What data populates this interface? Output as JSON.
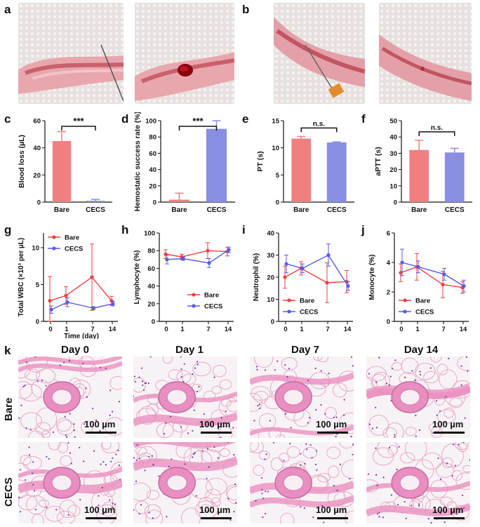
{
  "panel_letters": {
    "a": "a",
    "b": "b",
    "c": "c",
    "d": "d",
    "e": "e",
    "f": "f",
    "g": "g",
    "h": "h",
    "i": "i",
    "j": "j",
    "k": "k"
  },
  "colors": {
    "bare": "#f08080",
    "cecs": "#8a8ee0",
    "bare_line": "#ef4040",
    "cecs_line": "#5a5ae8"
  },
  "histology": {
    "days": [
      "Day 0",
      "Day 1",
      "Day 7",
      "Day 14"
    ],
    "rows": [
      "Bare",
      "CECS"
    ],
    "scale_label": "100 µm"
  },
  "chart_data": [
    {
      "id": "c",
      "type": "bar",
      "categories": [
        "Bare",
        "CECS"
      ],
      "values": [
        45,
        1
      ],
      "errors": [
        7,
        1
      ],
      "ylabel": "Blood loss (µL)",
      "ylim": [
        0,
        60
      ],
      "yticks": [
        0,
        20,
        40,
        60
      ],
      "significance": "***"
    },
    {
      "id": "d",
      "type": "bar",
      "categories": [
        "Bare",
        "CECS"
      ],
      "values": [
        3,
        90
      ],
      "errors": [
        8,
        10
      ],
      "ylabel": "Hemostatic success rate (%)",
      "ylim": [
        0,
        100
      ],
      "yticks": [
        0,
        20,
        40,
        60,
        80,
        100
      ],
      "significance": "***"
    },
    {
      "id": "e",
      "type": "bar",
      "categories": [
        "Bare",
        "CECS"
      ],
      "values": [
        11.7,
        11.0
      ],
      "errors": [
        0.4,
        0.1
      ],
      "ylabel": "PT (s)",
      "ylim": [
        0,
        15
      ],
      "yticks": [
        0,
        5,
        10,
        15
      ],
      "significance": "n.s."
    },
    {
      "id": "f",
      "type": "bar",
      "categories": [
        "Bare",
        "CECS"
      ],
      "values": [
        32,
        30.5
      ],
      "errors": [
        6,
        2.5
      ],
      "ylabel": "aPTT (s)",
      "ylim": [
        0,
        50
      ],
      "yticks": [
        0,
        10,
        20,
        30,
        40,
        50
      ],
      "significance": "n.s."
    },
    {
      "id": "g",
      "type": "line",
      "x": [
        0,
        1,
        7,
        14
      ],
      "xlabel": "Time (day)",
      "ylabel": "Total WBC (×10³ per µL)",
      "ylim": [
        0,
        12
      ],
      "yticks": [
        0,
        5,
        10
      ],
      "legend": "top-left",
      "series": [
        {
          "name": "Bare",
          "values": [
            2.8,
            3.5,
            6.0,
            2.8
          ],
          "errors": [
            3.3,
            1.2,
            4.5,
            0.6
          ]
        },
        {
          "name": "CECS",
          "values": [
            1.6,
            2.6,
            1.8,
            2.4
          ],
          "errors": [
            0.5,
            0.6,
            0.2,
            0.3
          ]
        }
      ]
    },
    {
      "id": "h",
      "type": "line",
      "x": [
        0,
        1,
        7,
        14
      ],
      "xlabel": "",
      "ylabel": "Lymphocyte (%)",
      "ylim": [
        0,
        100
      ],
      "yticks": [
        0,
        20,
        40,
        60,
        80,
        100
      ],
      "legend": "bottom-right",
      "series": [
        {
          "name": "Bare",
          "values": [
            76,
            73,
            80,
            79
          ],
          "errors": [
            5,
            3,
            9,
            5
          ]
        },
        {
          "name": "CECS",
          "values": [
            70,
            71,
            66,
            81
          ],
          "errors": [
            5,
            2,
            5,
            3
          ]
        }
      ]
    },
    {
      "id": "i",
      "type": "line",
      "x": [
        0,
        1,
        7,
        14
      ],
      "xlabel": "",
      "ylabel": "Neutrophil (%)",
      "ylim": [
        0,
        40
      ],
      "yticks": [
        0,
        10,
        20,
        30,
        40
      ],
      "legend": "bottom-left",
      "series": [
        {
          "name": "Bare",
          "values": [
            20,
            24,
            17.5,
            18
          ],
          "errors": [
            5,
            3,
            9,
            5
          ]
        },
        {
          "name": "CECS",
          "values": [
            26,
            24,
            30,
            16
          ],
          "errors": [
            4,
            2,
            5,
            2
          ]
        }
      ]
    },
    {
      "id": "j",
      "type": "line",
      "x": [
        0,
        1,
        7,
        14
      ],
      "xlabel": "",
      "ylabel": "Monocyte (%)",
      "ylim": [
        0,
        6
      ],
      "yticks": [
        0,
        2,
        4,
        6
      ],
      "legend": "bottom-left",
      "series": [
        {
          "name": "Bare",
          "values": [
            3.3,
            3.7,
            2.5,
            2.3
          ],
          "errors": [
            0.6,
            0.9,
            0.9,
            0.4
          ]
        },
        {
          "name": "CECS",
          "values": [
            4.0,
            3.7,
            3.2,
            2.4
          ],
          "errors": [
            0.9,
            0.4,
            0.4,
            0.4
          ]
        }
      ]
    }
  ]
}
